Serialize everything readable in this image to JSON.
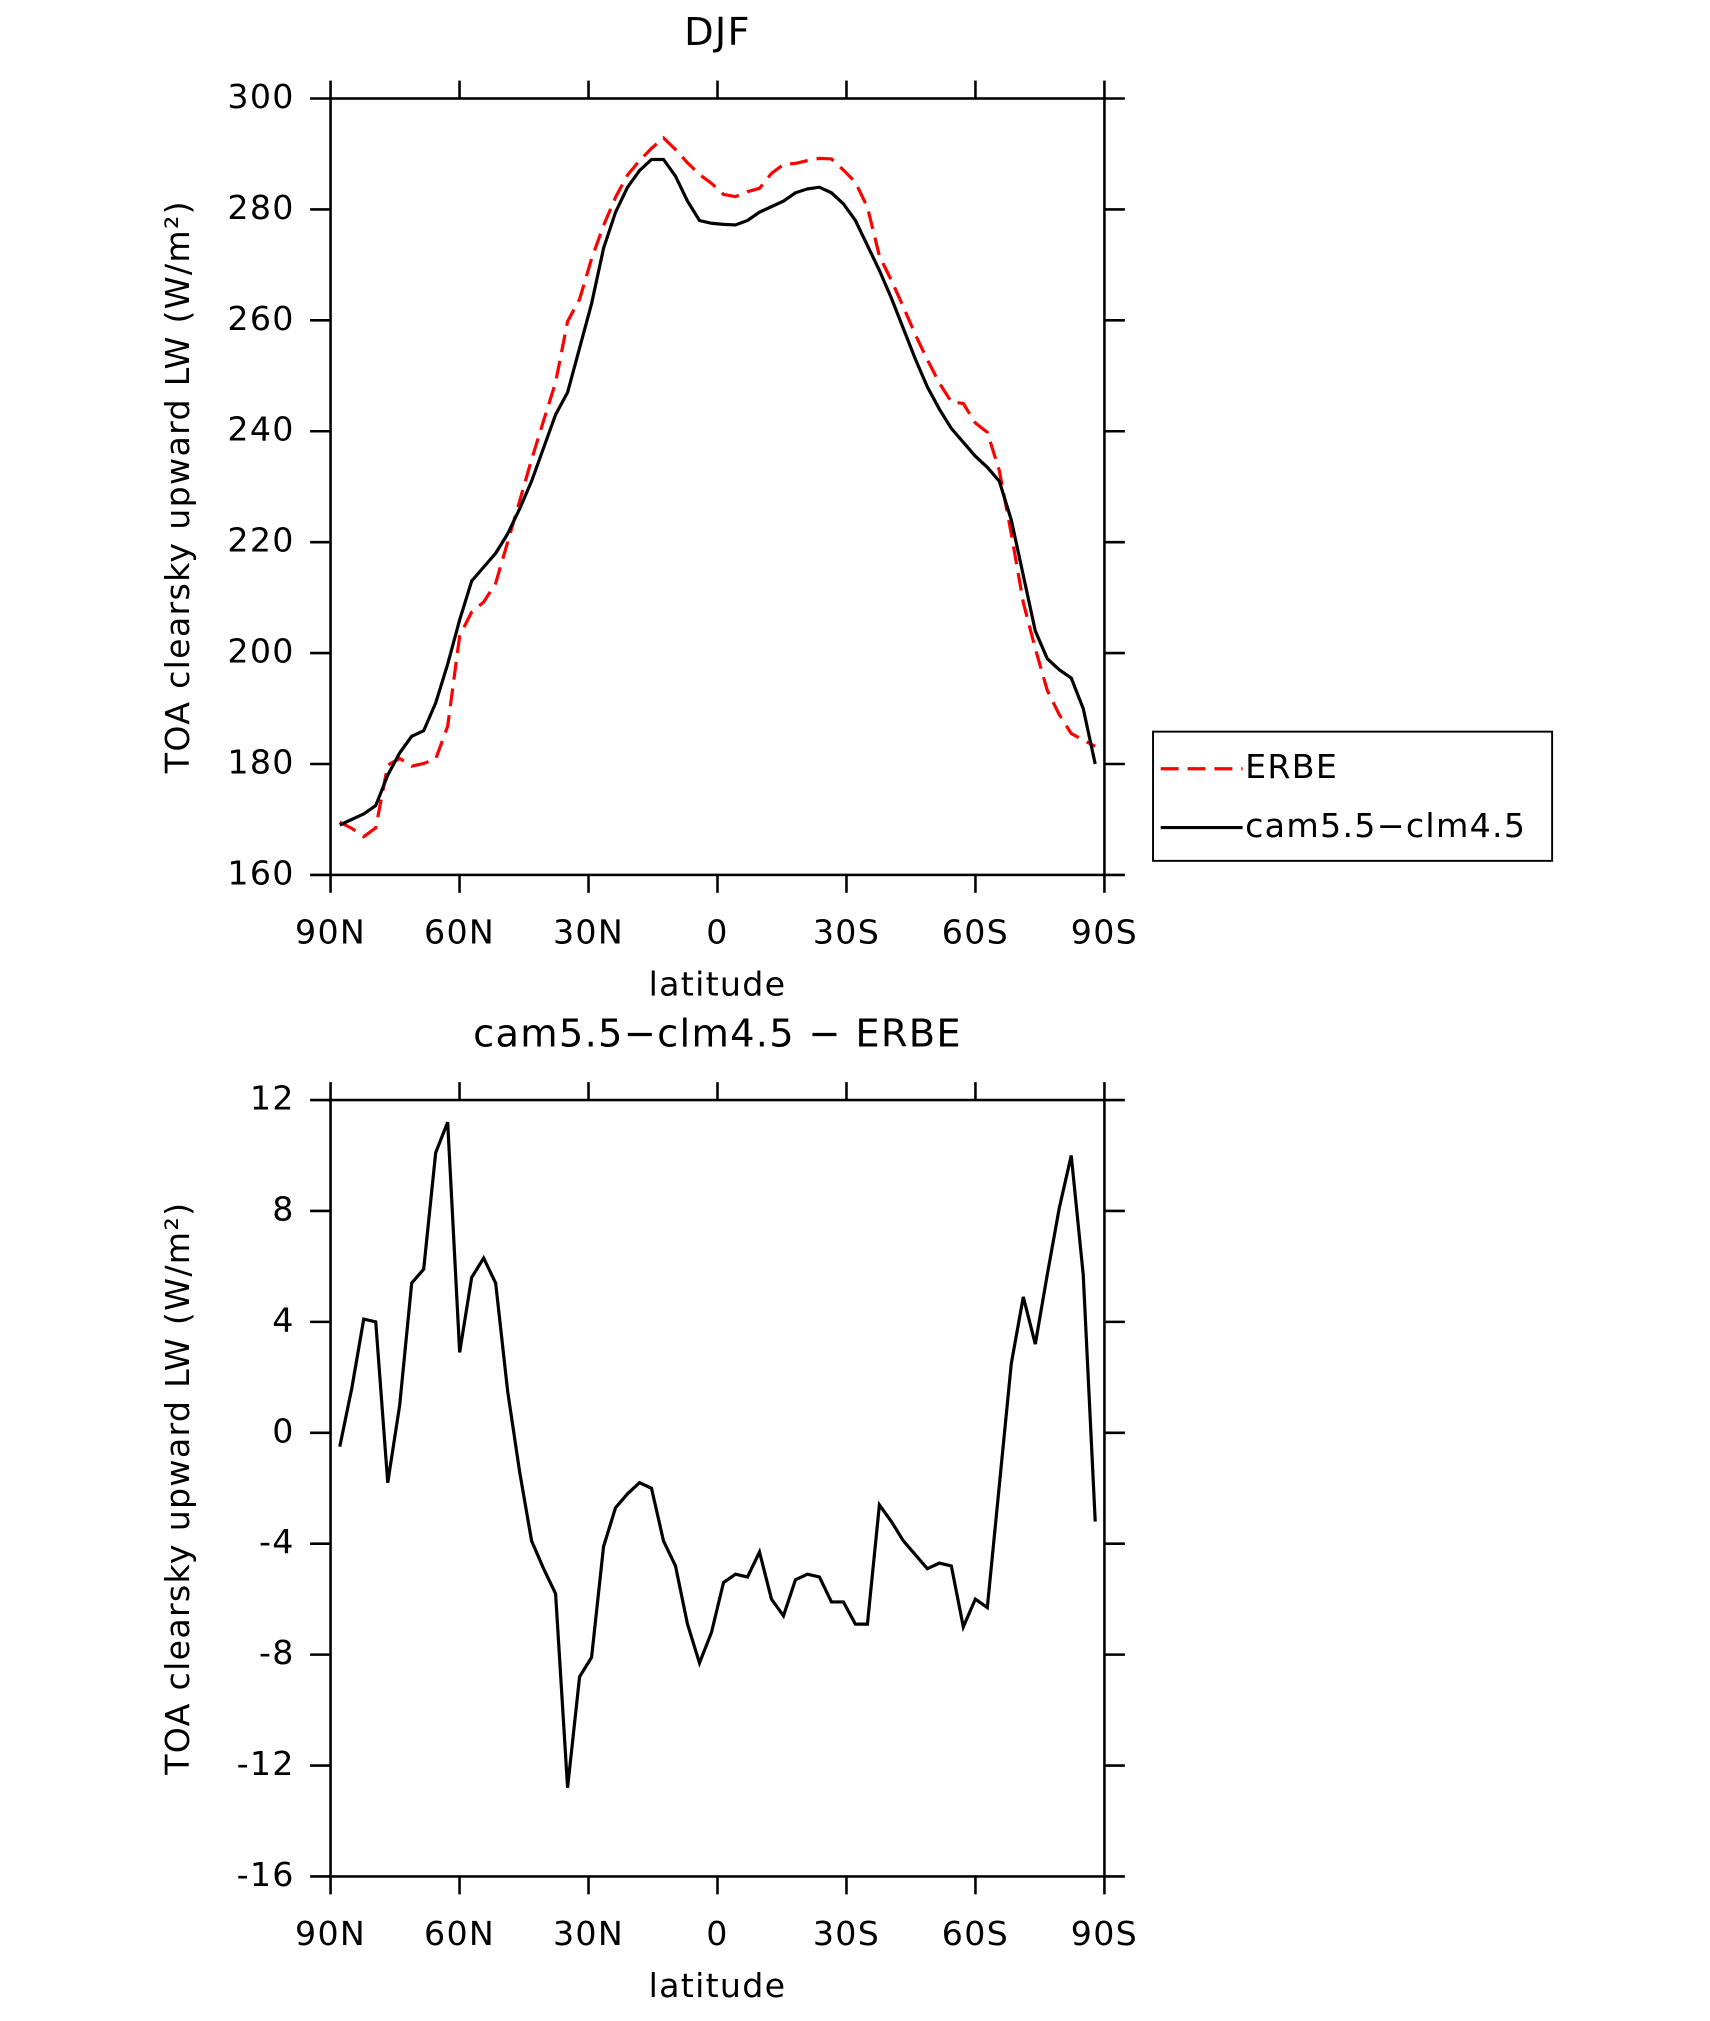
{
  "chart_data": [
    {
      "type": "line",
      "title": "DJF",
      "xlabel": "latitude",
      "ylabel": "TOA clearsky upward LW (W/m²)",
      "x": [
        87.86,
        85.07,
        82.28,
        79.49,
        76.7,
        73.92,
        71.13,
        68.34,
        65.55,
        62.76,
        59.97,
        57.18,
        54.39,
        51.6,
        48.81,
        46.03,
        43.24,
        40.45,
        37.66,
        34.87,
        32.08,
        29.29,
        26.5,
        23.71,
        20.92,
        18.14,
        15.35,
        12.56,
        9.77,
        6.98,
        4.19,
        1.4,
        -1.4,
        -4.19,
        -6.98,
        -9.77,
        -12.56,
        -15.35,
        -18.14,
        -20.92,
        -23.71,
        -26.5,
        -29.29,
        -32.08,
        -34.87,
        -37.66,
        -40.45,
        -43.24,
        -46.03,
        -48.81,
        -51.6,
        -54.39,
        -57.18,
        -59.97,
        -62.76,
        -65.55,
        -68.34,
        -71.13,
        -73.92,
        -76.7,
        -79.49,
        -82.28,
        -85.07,
        -87.86
      ],
      "series": [
        {
          "name": "ERBE",
          "color": "#ff0000",
          "linestyle": "dashed",
          "values": [
            169.5,
            168.4,
            166.9,
            168.5,
            179.8,
            181,
            179.6,
            180.1,
            180.9,
            186.8,
            203.1,
            207.4,
            209.2,
            212.6,
            220,
            227.4,
            234.9,
            241.9,
            248.8,
            259.8,
            263.8,
            271.1,
            277.1,
            282.2,
            286.2,
            288.8,
            291,
            292.9,
            290.8,
            288.4,
            286.3,
            284.7,
            282.7,
            282.3,
            283.2,
            283.8,
            286.5,
            288.1,
            288.3,
            288.8,
            289.2,
            289.1,
            287.1,
            284.9,
            280.4,
            271.6,
            267.2,
            262.4,
            257.4,
            252.9,
            248.7,
            245.3,
            245,
            241.5,
            239.8,
            232.9,
            221.5,
            209.1,
            200.8,
            193.3,
            188.9,
            185.5,
            184.3,
            183.2
          ]
        },
        {
          "name": "cam5.5−clm4.5",
          "color": "#000000",
          "linestyle": "solid",
          "values": [
            169,
            170,
            171,
            172.5,
            178,
            182,
            185,
            186,
            191,
            198,
            206,
            213,
            215.5,
            218,
            221.5,
            226,
            231,
            237,
            243,
            247,
            255,
            263,
            273,
            279.5,
            284,
            287,
            289,
            289,
            286,
            281.5,
            278,
            277.5,
            277.3,
            277.2,
            278,
            279.5,
            280.5,
            281.5,
            283,
            283.7,
            284,
            283,
            281,
            278,
            273.5,
            269,
            264,
            258.5,
            253,
            248,
            244,
            240.5,
            238,
            235.5,
            233.5,
            231,
            224,
            214,
            204,
            199,
            197,
            195.5,
            190,
            180
          ]
        }
      ],
      "xlim": [
        90,
        -90
      ],
      "xticks": [
        {
          "value": 90,
          "label": "90N"
        },
        {
          "value": 60,
          "label": "60N"
        },
        {
          "value": 30,
          "label": "30N"
        },
        0,
        {
          "value": -30,
          "label": "30S"
        },
        {
          "value": -60,
          "label": "60S"
        },
        {
          "value": -90,
          "label": "90S"
        }
      ],
      "ylim": [
        160,
        300
      ],
      "yticks": [
        160,
        180,
        200,
        220,
        240,
        260,
        280,
        300
      ],
      "legend": "right"
    },
    {
      "type": "line",
      "title": "cam5.5−clm4.5 − ERBE",
      "xlabel": "latitude",
      "ylabel": "TOA clearsky upward LW (W/m²)",
      "x": [
        87.86,
        85.07,
        82.28,
        79.49,
        76.7,
        73.92,
        71.13,
        68.34,
        65.55,
        62.76,
        59.97,
        57.18,
        54.39,
        51.6,
        48.81,
        46.03,
        43.24,
        40.45,
        37.66,
        34.87,
        32.08,
        29.29,
        26.5,
        23.71,
        20.92,
        18.14,
        15.35,
        12.56,
        9.77,
        6.98,
        4.19,
        1.4,
        -1.4,
        -4.19,
        -6.98,
        -9.77,
        -12.56,
        -15.35,
        -18.14,
        -20.92,
        -23.71,
        -26.5,
        -29.29,
        -32.08,
        -34.87,
        -37.66,
        -40.45,
        -43.24,
        -46.03,
        -48.81,
        -51.6,
        -54.39,
        -57.18,
        -59.97,
        -62.76,
        -65.55,
        -68.34,
        -71.13,
        -73.92,
        -76.7,
        -79.49,
        -82.28,
        -85.07,
        -87.86
      ],
      "series": [
        {
          "color": "#000000",
          "linestyle": "solid",
          "values": [
            -0.5,
            1.6,
            4.1,
            4.0,
            -1.8,
            1.0,
            5.4,
            5.9,
            10.1,
            11.2,
            2.9,
            5.6,
            6.3,
            5.4,
            1.5,
            -1.4,
            -3.9,
            -4.9,
            -5.8,
            -12.8,
            -8.8,
            -8.1,
            -4.1,
            -2.7,
            -2.2,
            -1.8,
            -2.0,
            -3.9,
            -4.8,
            -6.9,
            -8.3,
            -7.2,
            -5.4,
            -5.1,
            -5.2,
            -4.3,
            -6.0,
            -6.6,
            -5.3,
            -5.1,
            -5.2,
            -6.1,
            -6.1,
            -6.9,
            -6.9,
            -2.6,
            -3.2,
            -3.9,
            -4.4,
            -4.9,
            -4.7,
            -4.8,
            -7.0,
            -6.0,
            -6.3,
            -1.9,
            2.5,
            4.9,
            3.2,
            5.7,
            8.1,
            10.0,
            5.7,
            -3.2
          ]
        }
      ],
      "xlim": [
        90,
        -90
      ],
      "xticks": [
        {
          "value": 90,
          "label": "90N"
        },
        {
          "value": 60,
          "label": "60N"
        },
        {
          "value": 30,
          "label": "30N"
        },
        0,
        {
          "value": -30,
          "label": "30S"
        },
        {
          "value": -60,
          "label": "60S"
        },
        {
          "value": -90,
          "label": "90S"
        }
      ],
      "ylim": [
        -16,
        12
      ],
      "yticks": [
        -16,
        -12,
        -8,
        -4,
        0,
        4,
        8,
        12
      ]
    }
  ]
}
